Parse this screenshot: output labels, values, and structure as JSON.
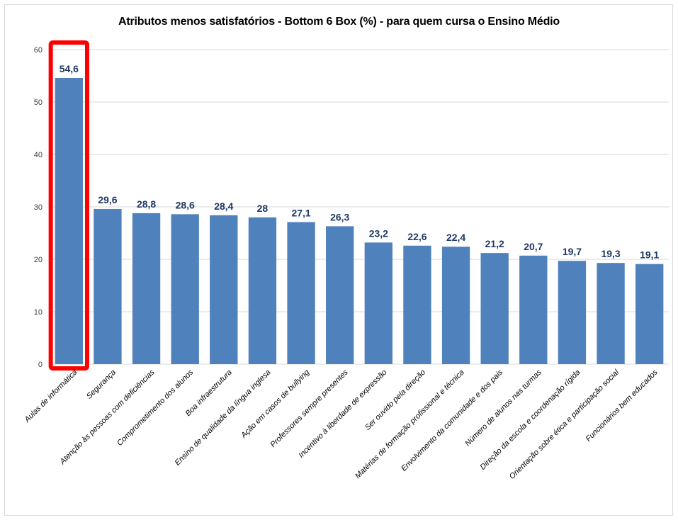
{
  "chart_data": {
    "type": "bar",
    "title": "Atributos menos satisfatórios - Bottom 6 Box (%) - para quem cursa o Ensino Médio",
    "xlabel": "",
    "ylabel": "",
    "ylim": [
      0,
      60
    ],
    "yticks": [
      0,
      10,
      20,
      30,
      40,
      50,
      60
    ],
    "grid": true,
    "categories": [
      "Aulas de informática",
      "Segurança",
      "Atenção às pessoas com deficiências",
      "Comprometimento dos alunos",
      "Boa infraestrutura",
      "Ensino de qualidade da língua inglesa",
      "Ação em casos de bullying",
      "Professores sempre presentes",
      "Incentivo à liberdade de expressão",
      "Ser ouvido pela direção",
      "Matérias de formação profissional e técnica",
      "Envolvimento da comunidade e dos pais",
      "Número de alunos nas turmas",
      "Direção da escola e coordenação rígida",
      "Orientação sobre ética e participação social",
      "Funcionários bem educados"
    ],
    "values": [
      54.6,
      29.6,
      28.8,
      28.6,
      28.4,
      28,
      27.1,
      26.3,
      23.2,
      22.6,
      22.4,
      21.2,
      20.7,
      19.7,
      19.3,
      19.1
    ],
    "data_labels": [
      "54,6",
      "29,6",
      "28,8",
      "28,6",
      "28,4",
      "28",
      "27,1",
      "26,3",
      "23,2",
      "22,6",
      "22,4",
      "21,2",
      "20,7",
      "19,7",
      "19,3",
      "19,1"
    ],
    "highlighted_category": "Aulas de informática",
    "colors": {
      "bar": "#4f81bd",
      "data_label": "#1f3864",
      "highlight_box": "#ff0000",
      "grid": "#d9d9d9"
    }
  }
}
